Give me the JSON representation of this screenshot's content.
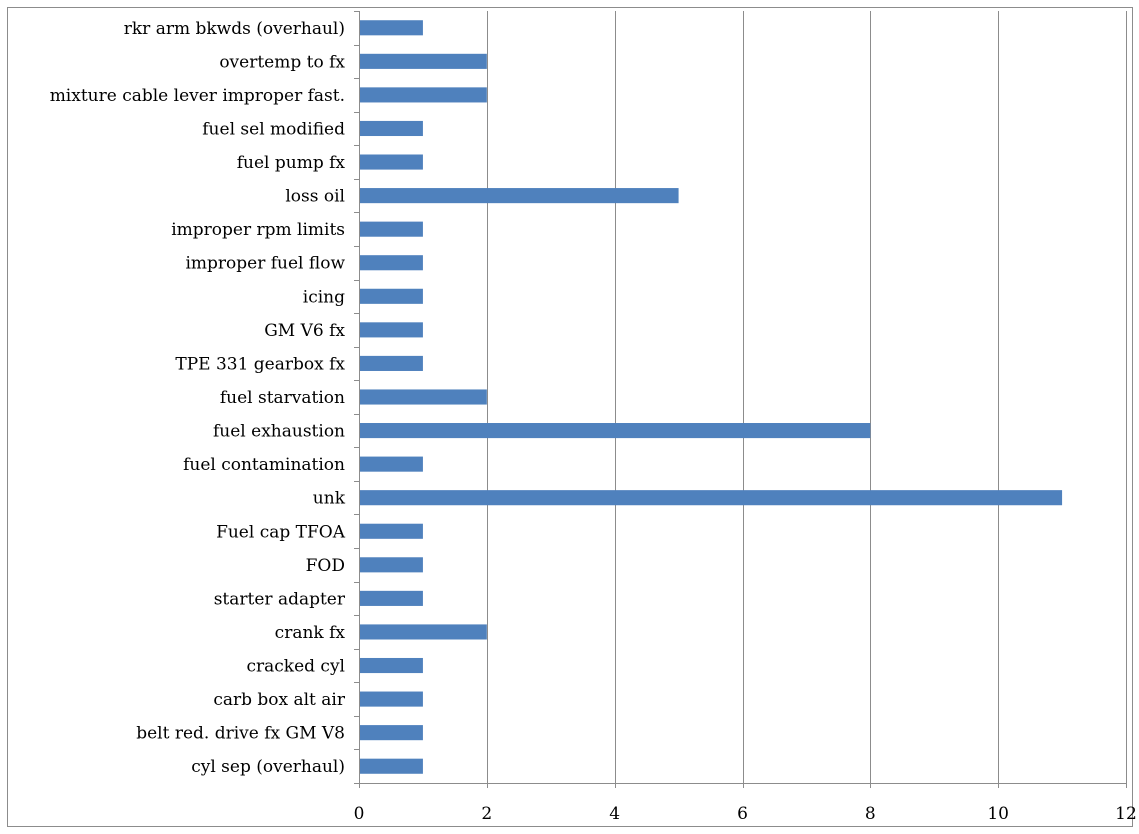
{
  "chart_data": {
    "type": "bar",
    "orientation": "horizontal",
    "title": "",
    "xlabel": "",
    "ylabel": "",
    "categories": [
      "rkr arm bkwds (overhaul)",
      "overtemp to fx",
      "mixture cable lever improper fast.",
      "fuel sel modified",
      "fuel pump fx",
      "loss oil",
      "improper rpm limits",
      "improper fuel flow",
      "icing",
      "GM V6 fx",
      "TPE 331 gearbox fx",
      "fuel starvation",
      "fuel exhaustion",
      "fuel contamination",
      "unk",
      "Fuel cap TFOA",
      "FOD",
      "starter adapter",
      "crank fx",
      "cracked cyl",
      "carb box alt air",
      "belt red. drive fx GM V8",
      "cyl sep (overhaul)"
    ],
    "values": [
      1,
      2,
      2,
      1,
      1,
      5,
      1,
      1,
      1,
      1,
      1,
      2,
      8,
      1,
      11,
      1,
      1,
      1,
      2,
      1,
      1,
      1,
      1
    ],
    "xlim": [
      0,
      12
    ],
    "xticks": [
      "0",
      "2",
      "4",
      "6",
      "8",
      "10",
      "12"
    ],
    "grid": "vertical",
    "legend": "none",
    "bar_color": "#4f81bd",
    "grid_color": "#8c8c8c"
  }
}
